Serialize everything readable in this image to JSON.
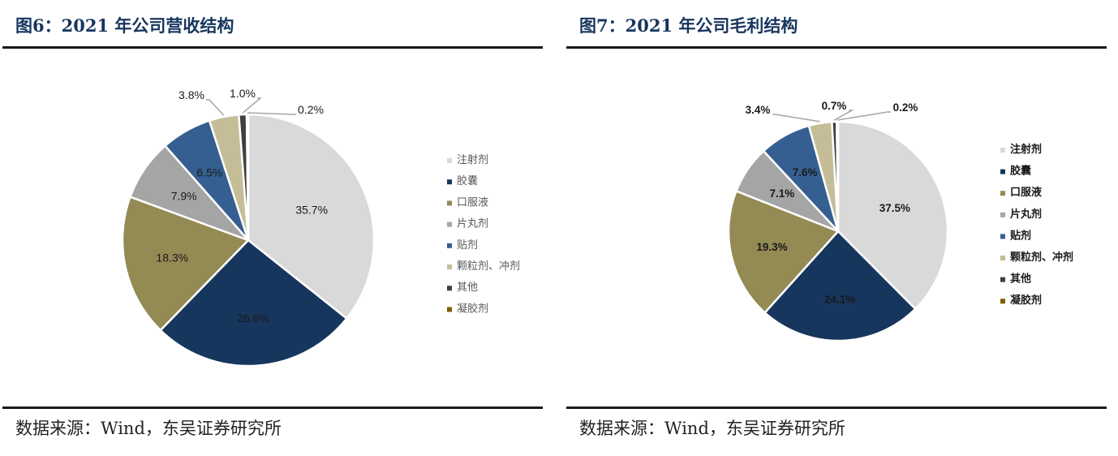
{
  "figures": [
    {
      "title": "图6：2021 年公司营收结构",
      "source": "数据来源：Wind，东吴证券研究所"
    },
    {
      "title": "图7：2021 年公司毛利结构",
      "source": "数据来源：Wind，东吴证券研究所"
    }
  ],
  "chart_data": [
    {
      "type": "pie",
      "title": "",
      "labels": [
        "注射剂",
        "胶囊",
        "口服液",
        "片丸剂",
        "贴剂",
        "颗粒剂、冲剂",
        "其他",
        "凝胶剂"
      ],
      "values": [
        35.7,
        26.6,
        18.3,
        7.9,
        6.5,
        3.8,
        1.0,
        0.2
      ],
      "data_labels": [
        "35.7%",
        "26.6%",
        "18.3%",
        "7.9%",
        "6.5%",
        "3.8%",
        "1.0%",
        "0.2%"
      ],
      "colors": [
        "#d9d9d9",
        "#17365d",
        "#948a54",
        "#a5a5a5",
        "#365f91",
        "#c4bd97",
        "#404040",
        "#7f6000"
      ],
      "legend": "right",
      "label_style": "normal"
    },
    {
      "type": "pie",
      "title": "",
      "labels": [
        "注射剂",
        "胶囊",
        "口服液",
        "片丸剂",
        "贴剂",
        "颗粒剂、冲剂",
        "其他",
        "凝胶剂"
      ],
      "values": [
        37.5,
        24.1,
        19.3,
        7.1,
        7.6,
        3.4,
        0.7,
        0.2
      ],
      "data_labels": [
        "37.5%",
        "24.1%",
        "19.3%",
        "7.1%",
        "7.6%",
        "3.4%",
        "0.7%",
        "0.2%"
      ],
      "colors": [
        "#d9d9d9",
        "#17365d",
        "#948a54",
        "#a5a5a5",
        "#365f91",
        "#c4bd97",
        "#404040",
        "#7f6000"
      ],
      "legend": "right",
      "label_style": "bold"
    }
  ]
}
